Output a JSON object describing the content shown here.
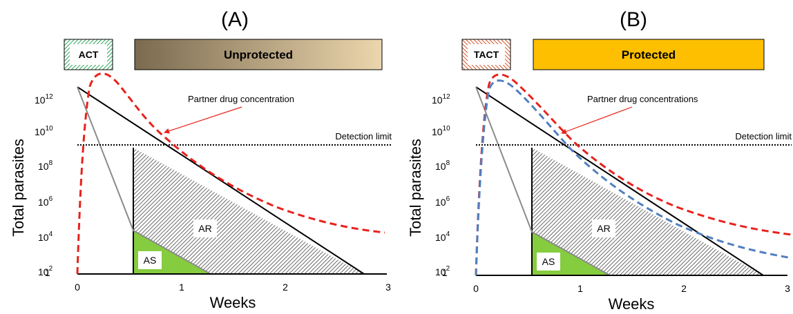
{
  "panels": [
    {
      "letter": "(A)",
      "drug_box": "ACT",
      "banner": "Unprotected",
      "ylabel": "Total parasites",
      "xlabel": "Weeks",
      "y_ticks": [
        {
          "base": "10",
          "exp": "12"
        },
        {
          "base": "10",
          "exp": "10"
        },
        {
          "base": "10",
          "exp": "8"
        },
        {
          "base": "10",
          "exp": "6"
        },
        {
          "base": "10",
          "exp": "4"
        },
        {
          "base": "10",
          "exp": "2"
        },
        {
          "base": "1",
          "exp": ""
        }
      ],
      "x_ticks": [
        "0",
        "1",
        "2",
        "3"
      ],
      "annotation": "Partner drug concentration",
      "detection_limit": "Detection limit",
      "region_ar": "AR",
      "region_as": "AS"
    },
    {
      "letter": "(B)",
      "drug_box": "TACT",
      "banner": "Protected",
      "ylabel": "Total parasites",
      "xlabel": "Weeks",
      "y_ticks": [
        {
          "base": "10",
          "exp": "12"
        },
        {
          "base": "10",
          "exp": "10"
        },
        {
          "base": "10",
          "exp": "8"
        },
        {
          "base": "10",
          "exp": "6"
        },
        {
          "base": "10",
          "exp": "4"
        },
        {
          "base": "10",
          "exp": "2"
        },
        {
          "base": "1",
          "exp": ""
        }
      ],
      "x_ticks": [
        "0",
        "1",
        "2",
        "3"
      ],
      "annotation": "Partner drug concentrations",
      "detection_limit": "Detection limit",
      "region_ar": "AR",
      "region_as": "AS"
    }
  ],
  "colors": {
    "drug_curve": "#e8211c",
    "drug_curve_2": "#4f7fc0",
    "act_box": "#2ea65a",
    "tact_box": "#d2552a",
    "unprotected_start": "#7a6a4f",
    "unprotected_end": "#ecd6ad",
    "protected": "#fdbf00",
    "as_fill": "#86cc3f"
  }
}
